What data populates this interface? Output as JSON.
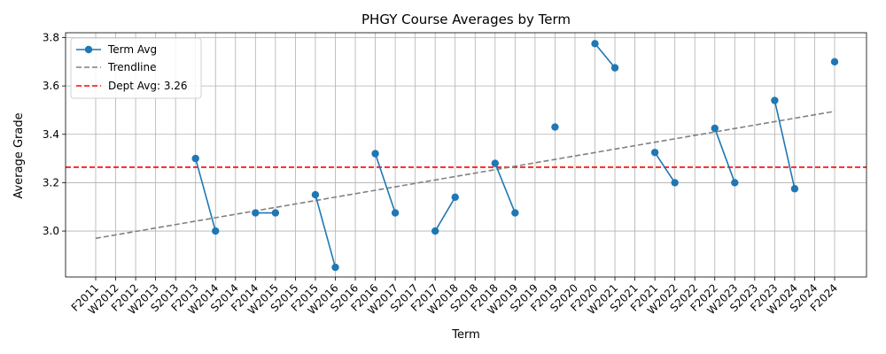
{
  "chart_data": {
    "type": "line",
    "title": "PHGY Course Averages by Term",
    "xlabel": "Term",
    "ylabel": "Average Grade",
    "categories": [
      "F2011",
      "W2012",
      "F2012",
      "W2013",
      "S2013",
      "F2013",
      "W2014",
      "S2014",
      "F2014",
      "W2015",
      "S2015",
      "F2015",
      "W2016",
      "S2016",
      "F2016",
      "W2017",
      "S2017",
      "F2017",
      "W2018",
      "S2018",
      "F2018",
      "W2019",
      "S2019",
      "F2019",
      "S2020",
      "F2020",
      "W2021",
      "S2021",
      "F2021",
      "W2022",
      "S2022",
      "F2022",
      "W2023",
      "S2023",
      "F2023",
      "W2024",
      "S2024",
      "F2024"
    ],
    "ylim": [
      2.81,
      3.82
    ],
    "yticks": [
      3.0,
      3.2,
      3.4,
      3.6,
      3.8
    ],
    "ytick_labels": [
      "3.0",
      "3.2",
      "3.4",
      "3.6",
      "3.8"
    ],
    "grid": true,
    "legend_position": "top-left",
    "series": [
      {
        "name": "Term Avg",
        "color": "#1f77b4",
        "style": "solid-with-markers",
        "values": [
          null,
          null,
          null,
          null,
          null,
          3.3,
          3.0,
          null,
          3.075,
          3.075,
          null,
          3.15,
          2.85,
          null,
          3.32,
          3.075,
          null,
          3.0,
          3.14,
          null,
          3.28,
          3.075,
          null,
          3.43,
          null,
          3.775,
          3.675,
          null,
          3.325,
          3.2,
          null,
          3.425,
          3.2,
          null,
          3.54,
          3.175,
          null,
          3.7
        ]
      },
      {
        "name": "Trendline",
        "color": "#808080",
        "style": "dashed",
        "start": {
          "x": "F2011",
          "y": 2.97
        },
        "end": {
          "x": "F2024",
          "y": 3.495
        }
      }
    ],
    "reference_line": {
      "label": "Dept Avg: 3.26",
      "value": 3.264,
      "color": "#ff0000",
      "style": "dashed"
    }
  }
}
